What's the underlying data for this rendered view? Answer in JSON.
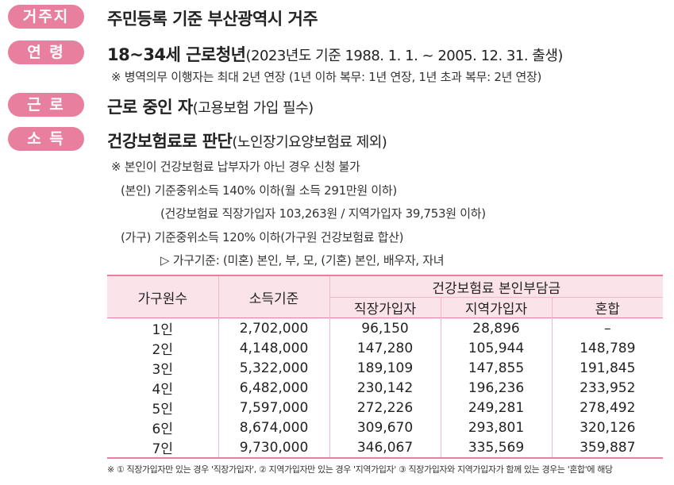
{
  "rows": [
    {
      "badge": "거주지",
      "title": "주민등록 기준 부산광역시 거주",
      "rest": ""
    },
    {
      "badge": "연 령",
      "title": "18~34세 근로청년",
      "rest": "(2023년도 기준 1988. 1. 1. ~ 2005. 12. 31. 출생)"
    },
    {
      "badge": "근 로",
      "title": "근로 중인 자",
      "rest": "(고용보험 가입 필수)"
    },
    {
      "badge": "소 득",
      "title": "건강보험료로 판단",
      "rest": "(노인장기요양보험료 제외)"
    }
  ],
  "notes": {
    "military": "※ 병역의무 이행자는 최대 2년 연장 (1년 이하 복무: 1년 연장, 1년 초과 복무: 2년 연장)",
    "nonpayer": "※ 본인이 건강보험료 납부자가 아닌 경우 신청 불가",
    "self": "(본인) 기준중위소득 140% 이하(월 소득 291만원 이하)",
    "self_detail": "(건강보험료 직장가입자 103,263원 / 지역가입자 39,753원 이하)",
    "household": "(가구) 기준중위소득 120% 이하(가구원 건강보험료 합산)",
    "household_detail": "▷ 가구기준: (미혼) 본인, 부, 모, (기혼) 본인, 배우자, 자녀"
  },
  "table": {
    "col_household": "가구원수",
    "col_income": "소득기준",
    "col_group": "건강보험료 본인부담금",
    "sub_cols": [
      "직장가입자",
      "지역가입자",
      "혼합"
    ],
    "rows": [
      [
        "1인",
        "2,702,000",
        "96,150",
        "28,896",
        "–"
      ],
      [
        "2인",
        "4,148,000",
        "147,280",
        "105,944",
        "148,789"
      ],
      [
        "3인",
        "5,322,000",
        "189,109",
        "147,855",
        "191,845"
      ],
      [
        "4인",
        "6,482,000",
        "230,142",
        "196,236",
        "233,952"
      ],
      [
        "5인",
        "7,597,000",
        "272,226",
        "249,281",
        "278,492"
      ],
      [
        "6인",
        "8,674,000",
        "309,670",
        "293,801",
        "320,126"
      ],
      [
        "7인",
        "9,730,000",
        "346,067",
        "335,569",
        "359,887"
      ]
    ]
  },
  "footnote": "※ ① 직장가입자만 있는 경우 '직장가입자', ② 지역가입자만 있는 경우 '지역가입자' ③ 직장가입자와 지역가입자가 함께 있는 경우는 '혼합'에 해당",
  "colors": {
    "accent": "#e87f9e",
    "header_bg": "#fbe3ea"
  }
}
